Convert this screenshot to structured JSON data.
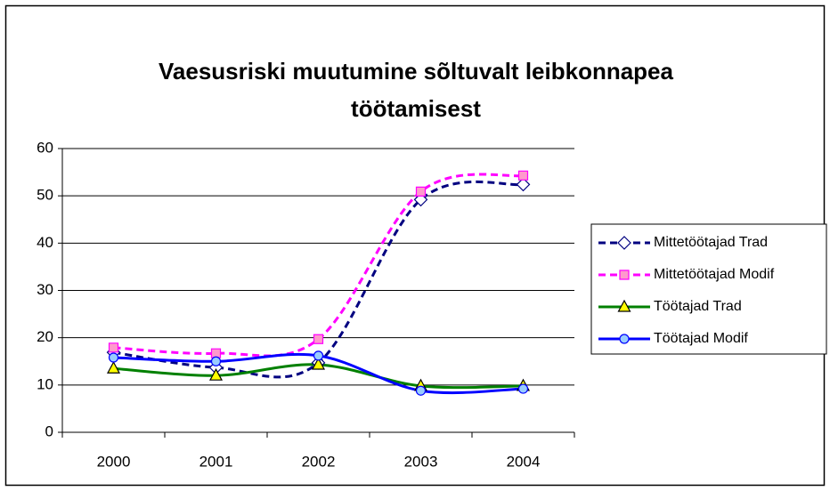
{
  "chart_data": {
    "type": "line",
    "title": [
      "Vaesusriski muutumine sõltuvalt leibkonnapea",
      "töötamisest"
    ],
    "categories": [
      "2000",
      "2001",
      "2002",
      "2003",
      "2004"
    ],
    "series": [
      {
        "name": "Mittetöötajad Trad",
        "color": "#000080",
        "dash": true,
        "marker": "diamond",
        "marker_fill": "#ffffff",
        "values": [
          16.9,
          13.7,
          14.7,
          49.2,
          52.4
        ]
      },
      {
        "name": "Mittetöötajad Modif",
        "color": "#ff00ff",
        "dash": true,
        "marker": "square",
        "marker_fill": "#ff99cc",
        "values": [
          17.9,
          16.7,
          19.7,
          50.9,
          54.3
        ]
      },
      {
        "name": "Töötajad Trad",
        "color": "#008000",
        "dash": false,
        "marker": "triangle",
        "marker_fill": "#ffff00",
        "values": [
          13.5,
          12.0,
          14.3,
          9.8,
          9.8
        ]
      },
      {
        "name": "Töötajad Modif",
        "color": "#0000ff",
        "dash": false,
        "marker": "circle",
        "marker_fill": "#99ccff",
        "values": [
          15.8,
          15.0,
          16.2,
          8.8,
          9.2
        ]
      }
    ],
    "ylim": [
      0,
      60
    ],
    "yticks": [
      0,
      10,
      20,
      30,
      40,
      50,
      60
    ],
    "grid": true,
    "smooth": true,
    "legend": "right"
  }
}
